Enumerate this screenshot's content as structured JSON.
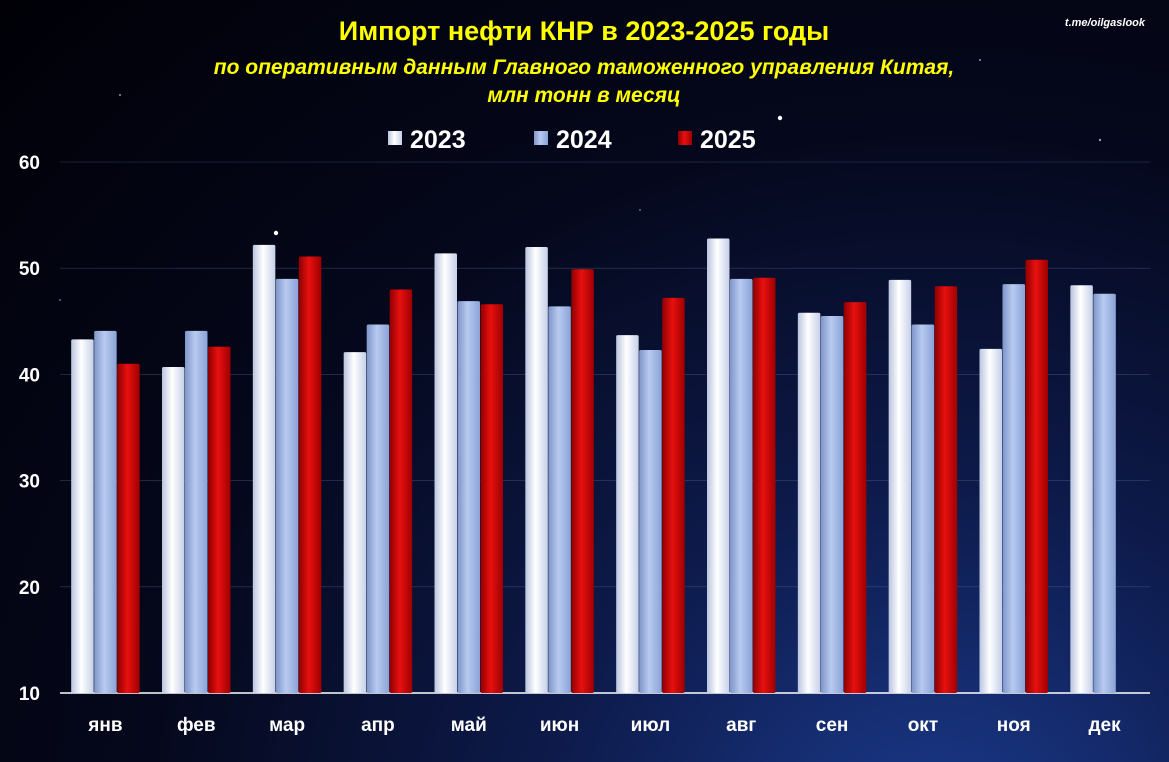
{
  "chart_data": {
    "type": "bar",
    "title": "Импорт нефти КНР в 2023-2025  годы",
    "subtitle_lines": [
      "по оперативным данным Главного таможенного  управления Китая,",
      "млн тонн в месяц"
    ],
    "source": "t.me/oilgaslook",
    "categories": [
      "янв",
      "фев",
      "мар",
      "апр",
      "май",
      "июн",
      "июл",
      "авг",
      "сен",
      "окт",
      "ноя",
      "дек"
    ],
    "series": [
      {
        "name": "2023",
        "color": "#eef2fb",
        "values": [
          43.3,
          40.7,
          52.2,
          42.1,
          51.4,
          52.0,
          43.7,
          52.8,
          45.8,
          48.9,
          42.4,
          48.4
        ]
      },
      {
        "name": "2024",
        "color": "#9fb6e6",
        "values": [
          44.1,
          44.1,
          49.0,
          44.7,
          46.9,
          46.4,
          42.3,
          49.0,
          45.5,
          44.7,
          48.5,
          47.6
        ]
      },
      {
        "name": "2025",
        "color": "#cc0000",
        "values": [
          41.0,
          42.6,
          51.1,
          48.0,
          46.6,
          49.9,
          47.2,
          49.1,
          46.8,
          48.3,
          50.8,
          null
        ]
      }
    ],
    "y_ticks": [
      "10",
      "20",
      "30",
      "40",
      "50",
      "60"
    ],
    "ylim": [
      10,
      60
    ],
    "grid": true,
    "legend_position": "top"
  }
}
